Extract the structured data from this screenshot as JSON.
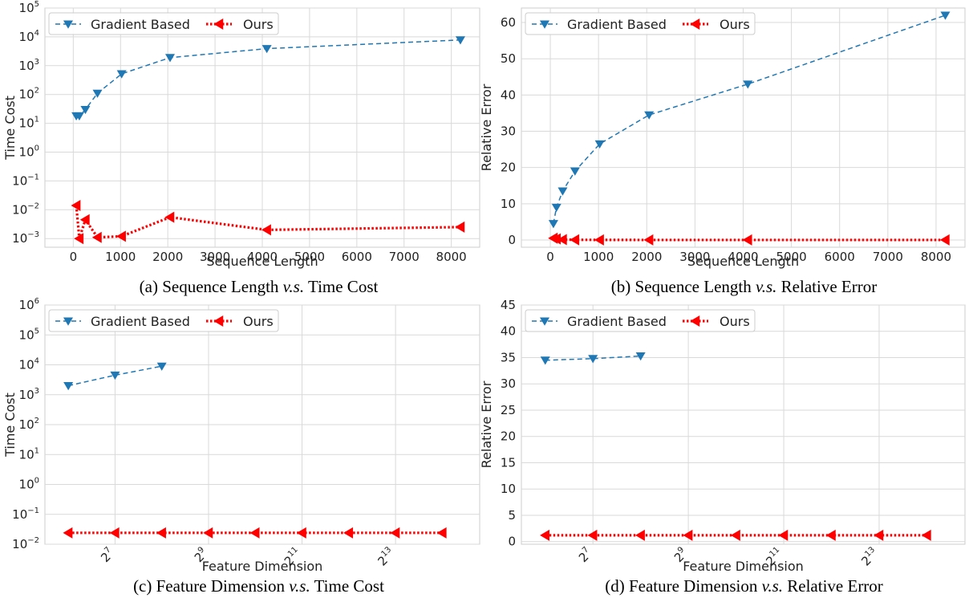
{
  "colors": {
    "gradient": "#1f77b4",
    "ours": "#ff0000",
    "grid": "#d9d9d9",
    "frame": "#cccccc"
  },
  "captions": [
    {
      "pre": "(a) Sequence Length ",
      "vs": "v.s.",
      "post": "  Time Cost"
    },
    {
      "pre": "(b) Sequence Length ",
      "vs": "v.s.",
      "post": "  Relative Error"
    },
    {
      "pre": "(c) Feature Dimension ",
      "vs": "v.s.",
      "post": "  Time Cost"
    },
    {
      "pre": "(d) Feature Dimension ",
      "vs": "v.s.",
      "post": "  Relative Error"
    }
  ],
  "chart_data": [
    {
      "type": "line",
      "xlabel": "Sequence Length",
      "ylabel": "Time Cost",
      "xscale": "linear",
      "yscale": "log",
      "xlim": [
        -600,
        8600
      ],
      "ylim": [
        0.0005,
        100000
      ],
      "xticks": [
        0,
        1000,
        2000,
        3000,
        4000,
        5000,
        6000,
        7000,
        8000
      ],
      "xticklabels": [
        "0",
        "1000",
        "2000",
        "3000",
        "4000",
        "5000",
        "6000",
        "7000",
        "8000"
      ],
      "yticks": [
        0.001,
        0.01,
        0.1,
        1,
        10,
        100,
        1000,
        10000,
        100000
      ],
      "yticklabels": [
        [
          "10",
          "−3"
        ],
        [
          "10",
          "−2"
        ],
        [
          "10",
          "−1"
        ],
        [
          "10",
          "0"
        ],
        [
          "10",
          "1"
        ],
        [
          "10",
          "2"
        ],
        [
          "10",
          "3"
        ],
        [
          "10",
          "4"
        ],
        [
          "10",
          "5"
        ]
      ],
      "grid": true,
      "legend": "top-left",
      "series": [
        {
          "name": "Gradient Based",
          "x": [
            64,
            128,
            256,
            512,
            1024,
            2048,
            4096,
            8192
          ],
          "y": [
            18,
            18,
            30,
            110,
            520,
            1900,
            3900,
            7800
          ]
        },
        {
          "name": "Ours",
          "x": [
            64,
            128,
            256,
            512,
            1024,
            2048,
            4096,
            8192
          ],
          "y": [
            0.014,
            0.001,
            0.0045,
            0.0011,
            0.0012,
            0.0055,
            0.002,
            0.0025
          ]
        }
      ]
    },
    {
      "type": "line",
      "xlabel": "Sequence Length",
      "ylabel": "Relative Error",
      "xscale": "linear",
      "yscale": "linear",
      "xlim": [
        -600,
        8600
      ],
      "ylim": [
        -2,
        64
      ],
      "xticks": [
        0,
        1000,
        2000,
        3000,
        4000,
        5000,
        6000,
        7000,
        8000
      ],
      "xticklabels": [
        "0",
        "1000",
        "2000",
        "3000",
        "4000",
        "5000",
        "6000",
        "7000",
        "8000"
      ],
      "yticks": [
        0,
        10,
        20,
        30,
        40,
        50,
        60
      ],
      "yticklabels": [
        "0",
        "10",
        "20",
        "30",
        "40",
        "50",
        "60"
      ],
      "grid": true,
      "legend": "top-left",
      "series": [
        {
          "name": "Gradient Based",
          "x": [
            64,
            128,
            256,
            512,
            1024,
            2048,
            4096,
            8192
          ],
          "y": [
            4.5,
            9,
            13.5,
            19,
            26.5,
            34.5,
            43,
            62
          ]
        },
        {
          "name": "Ours",
          "x": [
            64,
            128,
            256,
            512,
            1024,
            2048,
            4096,
            8192
          ],
          "y": [
            0.5,
            0.3,
            0.1,
            0.05,
            0.02,
            0.01,
            0.01,
            0.01
          ]
        }
      ]
    },
    {
      "type": "line",
      "xlabel": "Feature Dimension",
      "ylabel": "Time Cost",
      "xscale": "log2",
      "yscale": "log",
      "xlim": [
        5.5,
        14.8
      ],
      "ylim": [
        0.01,
        1000000
      ],
      "xticks": [
        7,
        9,
        11,
        13
      ],
      "xticklabels": [
        [
          "2",
          "7"
        ],
        [
          "2",
          "9"
        ],
        [
          "2",
          "11"
        ],
        [
          "2",
          "13"
        ]
      ],
      "yticks": [
        0.01,
        0.1,
        1,
        10,
        100,
        1000,
        10000,
        100000,
        1000000
      ],
      "yticklabels": [
        [
          "10",
          "−2"
        ],
        [
          "10",
          "−1"
        ],
        [
          "10",
          "0"
        ],
        [
          "10",
          "1"
        ],
        [
          "10",
          "2"
        ],
        [
          "10",
          "3"
        ],
        [
          "10",
          "4"
        ],
        [
          "10",
          "5"
        ],
        [
          "10",
          "6"
        ]
      ],
      "grid": true,
      "legend": "top-left",
      "series": [
        {
          "name": "Gradient Based",
          "x": [
            6,
            7,
            8
          ],
          "y": [
            2000,
            4500,
            9000
          ]
        },
        {
          "name": "Ours",
          "x": [
            6,
            7,
            8,
            9,
            10,
            11,
            12,
            13,
            14
          ],
          "y": [
            0.024,
            0.024,
            0.024,
            0.024,
            0.024,
            0.024,
            0.024,
            0.024,
            0.024
          ]
        }
      ]
    },
    {
      "type": "line",
      "xlabel": "Feature Dimension",
      "ylabel": "Relative Error",
      "xscale": "log2",
      "yscale": "linear",
      "xlim": [
        5.5,
        14.8
      ],
      "ylim": [
        -0.5,
        45
      ],
      "xticks": [
        7,
        9,
        11,
        13
      ],
      "xticklabels": [
        [
          "2",
          "7"
        ],
        [
          "2",
          "9"
        ],
        [
          "2",
          "11"
        ],
        [
          "2",
          "13"
        ]
      ],
      "yticks": [
        0,
        5,
        10,
        15,
        20,
        25,
        30,
        35,
        40,
        45
      ],
      "yticklabels": [
        "0",
        "5",
        "10",
        "15",
        "20",
        "25",
        "30",
        "35",
        "40",
        "45"
      ],
      "grid": true,
      "legend": "top-left",
      "series": [
        {
          "name": "Gradient Based",
          "x": [
            6,
            7,
            8
          ],
          "y": [
            34.5,
            34.8,
            35.3
          ]
        },
        {
          "name": "Ours",
          "x": [
            6,
            7,
            8,
            9,
            10,
            11,
            12,
            13,
            14
          ],
          "y": [
            1.2,
            1.2,
            1.2,
            1.2,
            1.2,
            1.2,
            1.2,
            1.2,
            1.2
          ]
        }
      ]
    }
  ]
}
